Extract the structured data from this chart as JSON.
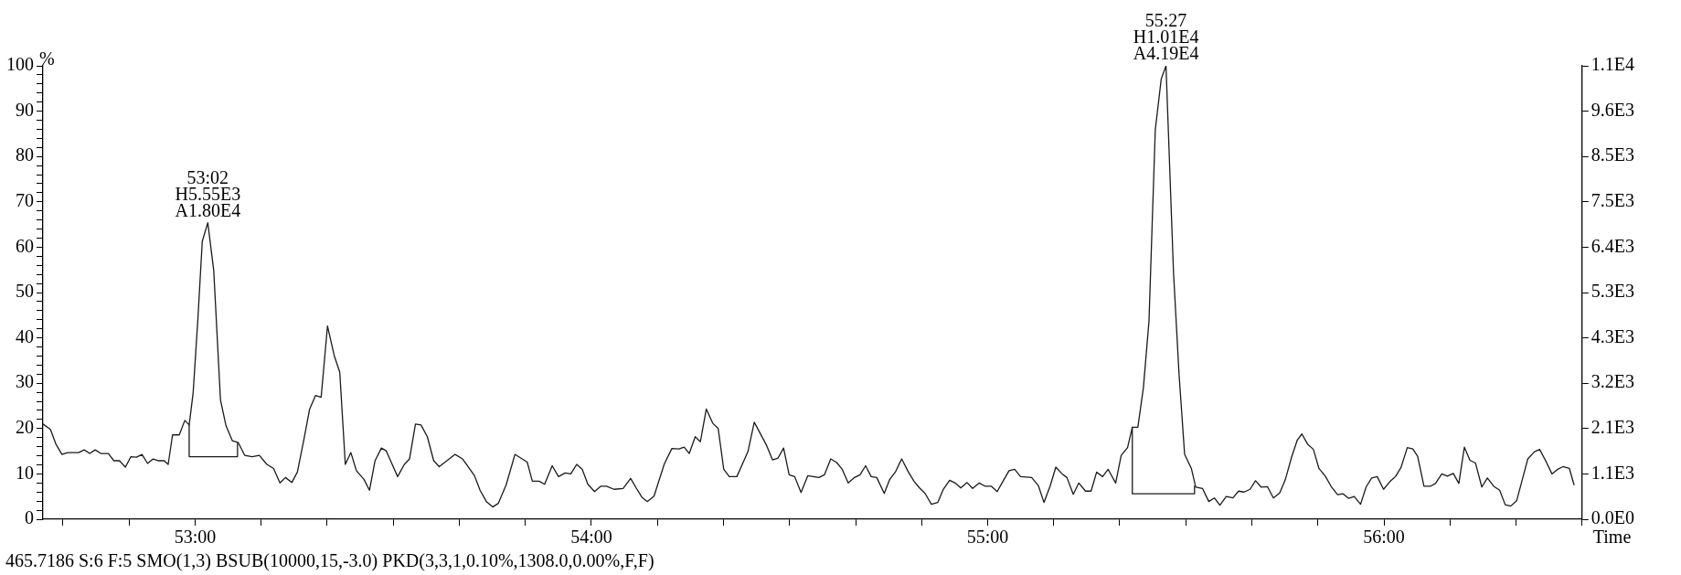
{
  "chart_data": {
    "type": "line",
    "xlabel": "Time",
    "ylabel": "%",
    "xlim": [
      52.616,
      56.5
    ],
    "xticks": [
      {
        "value": 52.6667,
        "label": null
      },
      {
        "value": 52.8333,
        "label": null
      },
      {
        "value": 53,
        "label": "53:00"
      },
      {
        "value": 53.1667,
        "label": null
      },
      {
        "value": 53.3333,
        "label": null
      },
      {
        "value": 53.5,
        "label": null
      },
      {
        "value": 53.6667,
        "label": null
      },
      {
        "value": 53.8333,
        "label": null
      },
      {
        "value": 54,
        "label": "54:00"
      },
      {
        "value": 54.1667,
        "label": null
      },
      {
        "value": 54.3333,
        "label": null
      },
      {
        "value": 54.5,
        "label": null
      },
      {
        "value": 54.6667,
        "label": null
      },
      {
        "value": 54.8333,
        "label": null
      },
      {
        "value": 55,
        "label": "55:00"
      },
      {
        "value": 55.1667,
        "label": null
      },
      {
        "value": 55.3333,
        "label": null
      },
      {
        "value": 55.5,
        "label": null
      },
      {
        "value": 55.6667,
        "label": null
      },
      {
        "value": 55.8333,
        "label": null
      },
      {
        "value": 56,
        "label": "56:00"
      },
      {
        "value": 56.1667,
        "label": null
      },
      {
        "value": 56.3333,
        "label": null
      },
      {
        "value": 56.5,
        "label": null
      }
    ],
    "ylim": [
      0,
      100
    ],
    "yticks": [
      0,
      {
        "value": 2,
        "label": null
      },
      {
        "value": 4,
        "label": null
      },
      {
        "value": 6,
        "label": null
      },
      {
        "value": 8,
        "label": null
      },
      10,
      {
        "value": 12,
        "label": null
      },
      {
        "value": 14,
        "label": null
      },
      {
        "value": 16,
        "label": null
      },
      {
        "value": 18,
        "label": null
      },
      20,
      {
        "value": 22,
        "label": null
      },
      {
        "value": 24,
        "label": null
      },
      {
        "value": 26,
        "label": null
      },
      {
        "value": 28,
        "label": null
      },
      30,
      {
        "value": 32,
        "label": null
      },
      {
        "value": 34,
        "label": null
      },
      {
        "value": 36,
        "label": null
      },
      {
        "value": 38,
        "label": null
      },
      40,
      {
        "value": 42,
        "label": null
      },
      {
        "value": 44,
        "label": null
      },
      {
        "value": 46,
        "label": null
      },
      {
        "value": 48,
        "label": null
      },
      50,
      {
        "value": 52,
        "label": null
      },
      {
        "value": 54,
        "label": null
      },
      {
        "value": 56,
        "label": null
      },
      {
        "value": 58,
        "label": null
      },
      60,
      {
        "value": 62,
        "label": null
      },
      {
        "value": 64,
        "label": null
      },
      {
        "value": 66,
        "label": null
      },
      {
        "value": 68,
        "label": null
      },
      70,
      {
        "value": 72,
        "label": null
      },
      {
        "value": 74,
        "label": null
      },
      {
        "value": 76,
        "label": null
      },
      {
        "value": 78,
        "label": null
      },
      80,
      {
        "value": 82,
        "label": null
      },
      {
        "value": 84,
        "label": null
      },
      {
        "value": 86,
        "label": null
      },
      {
        "value": 88,
        "label": null
      },
      90,
      {
        "value": 92,
        "label": null
      },
      {
        "value": 94,
        "label": null
      },
      {
        "value": 96,
        "label": null
      },
      {
        "value": 98,
        "label": null
      },
      100
    ],
    "y2lim": [
      0,
      10650
    ],
    "y2ticks": [
      {
        "value": 0,
        "label": "0.0E0"
      },
      {
        "value": 1065,
        "label": "1.1E3"
      },
      {
        "value": 2130,
        "label": "2.1E3"
      },
      {
        "value": 3195,
        "label": "3.2E3"
      },
      {
        "value": 4260,
        "label": "4.3E3"
      },
      {
        "value": 5325,
        "label": "5.3E3"
      },
      {
        "value": 6390,
        "label": "6.4E3"
      },
      {
        "value": 7455,
        "label": "7.5E3"
      },
      {
        "value": 8520,
        "label": "8.5E3"
      },
      {
        "value": 9585,
        "label": "9.6E3"
      },
      {
        "value": 10650,
        "label": "1.1E4"
      }
    ],
    "series": [
      {
        "color": "#1a1a1a",
        "x": [
          52.616,
          52.635,
          52.649,
          52.664,
          52.678,
          52.706,
          52.72,
          52.734,
          52.748,
          52.762,
          52.781,
          52.795,
          52.809,
          52.824,
          52.838,
          52.852,
          52.866,
          52.88,
          52.894,
          52.908,
          52.922,
          52.932,
          52.943,
          52.96,
          52.974,
          52.985,
          52.995,
          53.007,
          53.018,
          53.032,
          53.047,
          53.064,
          53.078,
          53.094,
          53.109,
          53.125,
          53.144,
          53.162,
          53.181,
          53.198,
          53.214,
          53.228,
          53.244,
          53.258,
          53.275,
          53.289,
          53.304,
          53.318,
          53.334,
          53.351,
          53.365,
          53.379,
          53.393,
          53.407,
          53.426,
          53.44,
          53.454,
          53.47,
          53.482,
          53.511,
          53.528,
          53.541,
          53.556,
          53.57,
          53.586,
          53.602,
          53.616,
          53.656,
          53.675,
          53.705,
          53.719,
          53.735,
          53.751,
          53.765,
          53.785,
          53.807,
          53.838,
          53.851,
          53.868,
          53.882,
          53.901,
          53.917,
          53.934,
          53.948,
          53.963,
          53.977,
          53.991,
          54.008,
          54.024,
          54.038,
          54.057,
          54.08,
          54.099,
          54.113,
          54.127,
          54.141,
          54.158,
          54.184,
          54.203,
          54.221,
          54.234,
          54.247,
          54.262,
          54.275,
          54.29,
          54.306,
          54.32,
          54.334,
          54.348,
          54.367,
          54.395,
          54.411,
          54.442,
          54.457,
          54.471,
          54.485,
          54.499,
          54.513,
          54.529,
          54.546,
          54.574,
          54.588,
          54.604,
          54.619,
          54.633,
          54.648,
          54.664,
          54.678,
          54.692,
          54.706,
          54.72,
          54.739,
          54.753,
          54.767,
          54.783,
          54.8,
          54.814,
          54.828,
          54.842,
          54.858,
          54.874,
          54.888,
          54.904,
          54.918,
          54.932,
          54.948,
          54.962,
          54.979,
          54.993,
          55.009,
          55.024,
          55.04,
          55.054,
          55.068,
          55.083,
          55.111,
          55.128,
          55.142,
          55.158,
          55.172,
          55.188,
          55.2,
          55.216,
          55.23,
          55.247,
          55.261,
          55.275,
          55.29,
          55.304,
          55.323,
          55.337,
          55.353,
          55.365,
          55.379,
          55.393,
          55.407,
          55.423,
          55.438,
          55.45,
          55.469,
          55.483,
          55.497,
          55.514,
          55.525,
          55.542,
          55.558,
          55.572,
          55.586,
          55.602,
          55.619,
          55.633,
          55.647,
          55.662,
          55.676,
          55.69,
          55.706,
          55.721,
          55.737,
          55.751,
          55.767,
          55.781,
          55.793,
          55.807,
          55.822,
          55.836,
          55.852,
          55.867,
          55.883,
          55.897,
          55.911,
          55.925,
          55.941,
          55.955,
          55.969,
          55.983,
          55.999,
          56.015,
          56.029,
          56.043,
          56.059,
          56.073,
          56.085,
          56.101,
          56.118,
          56.13,
          56.146,
          56.16,
          56.175,
          56.189,
          56.203,
          56.217,
          56.231,
          56.247,
          56.261,
          56.278,
          56.292,
          56.306,
          56.32,
          56.335,
          56.349,
          56.363,
          56.38,
          56.393,
          56.408,
          56.424,
          56.438,
          56.452,
          56.468,
          56.48
        ],
        "values": [
          21.0,
          19.8,
          16.5,
          14.3,
          14.7,
          14.7,
          15.3,
          14.5,
          15.3,
          14.5,
          14.5,
          12.9,
          12.9,
          11.5,
          13.8,
          13.7,
          14.3,
          12.3,
          13.3,
          12.9,
          12.9,
          12.1,
          18.6,
          18.6,
          21.8,
          20.8,
          27.9,
          44.2,
          61.3,
          65.4,
          54.8,
          26.3,
          20.6,
          17.3,
          16.9,
          14.1,
          13.8,
          14.1,
          12.1,
          11.2,
          8.0,
          9.2,
          8.1,
          10.4,
          17.8,
          24.3,
          27.3,
          26.9,
          42.6,
          36.1,
          32.4,
          12.1,
          14.7,
          10.7,
          8.8,
          6.4,
          12.9,
          15.7,
          15.1,
          9.4,
          12.1,
          13.3,
          21.0,
          20.8,
          18.2,
          12.9,
          11.6,
          14.3,
          13.3,
          9.6,
          6.4,
          3.9,
          2.7,
          3.5,
          7.6,
          14.3,
          12.6,
          8.4,
          8.4,
          7.7,
          11.8,
          9.4,
          10.2,
          10.0,
          12.1,
          11.0,
          7.7,
          6.1,
          7.3,
          7.3,
          6.6,
          6.8,
          9.0,
          6.9,
          4.9,
          3.9,
          5.1,
          12.2,
          15.6,
          15.5,
          15.9,
          14.5,
          18.2,
          17.1,
          24.3,
          21.2,
          20.0,
          11.0,
          9.4,
          9.4,
          14.9,
          21.4,
          16.3,
          13.1,
          13.5,
          15.7,
          9.8,
          9.4,
          5.9,
          9.6,
          9.2,
          9.8,
          13.3,
          12.5,
          11.0,
          8.0,
          9.2,
          9.8,
          11.8,
          9.4,
          9.2,
          5.7,
          8.8,
          10.4,
          13.3,
          10.4,
          8.4,
          6.9,
          5.7,
          3.3,
          3.7,
          6.6,
          8.6,
          8.0,
          6.9,
          8.1,
          6.8,
          8.0,
          7.3,
          7.3,
          6.1,
          8.6,
          10.7,
          11.0,
          9.4,
          9.2,
          7.4,
          3.7,
          7.4,
          11.5,
          10.0,
          9.2,
          5.5,
          8.0,
          6.2,
          6.2,
          10.4,
          9.4,
          11.0,
          8.0,
          14.1,
          15.8,
          20.3,
          20.3,
          29.0,
          43.6,
          85.9,
          97.1,
          100,
          54.4,
          31.9,
          14.3,
          11.2,
          7.1,
          6.8,
          3.9,
          4.7,
          3.1,
          5.0,
          4.7,
          6.2,
          6.0,
          6.6,
          8.5,
          7.1,
          7.2,
          4.7,
          5.8,
          8.7,
          13.7,
          17.4,
          18.8,
          16.6,
          15.4,
          11.2,
          9.5,
          7.2,
          5.4,
          5.6,
          4.6,
          5.0,
          3.3,
          7.1,
          9.1,
          9.4,
          6.6,
          8.3,
          9.4,
          11.4,
          15.8,
          15.5,
          13.9,
          7.3,
          7.3,
          7.9,
          10.0,
          9.5,
          10.1,
          7.9,
          15.9,
          13.0,
          12.4,
          7.1,
          9.1,
          7.2,
          6.4,
          3.2,
          2.9,
          4.1,
          8.7,
          13.3,
          14.9,
          15.4,
          12.9,
          10.0,
          11.0,
          11.6,
          11.2,
          7.5
        ]
      },
      {
        "color": "#1a1a1a",
        "x": [
          52.985,
          52.985,
          53.107,
          53.107
        ],
        "values": [
          20.8,
          13.8,
          13.8,
          16.9
        ]
      },
      {
        "color": "#1a1a1a",
        "x": [
          55.365,
          55.365,
          55.522,
          55.522
        ],
        "values": [
          20.3,
          5.6,
          5.6,
          7.4
        ]
      }
    ],
    "annotations": [
      {
        "text": "53:02\nH5.55E3\nA1.80E4",
        "x": 53.032,
        "y": 65.4
      },
      {
        "text": "55:27\nH1.01E4\nA4.19E4",
        "x": 55.45,
        "y": 100
      },
      "465.7186 S:6 F:5 SMO(1,3) BSUB(10000,15,-3.0) PKD(3,3,1,0.10%,1308.0,0.00%,F,F)"
    ]
  }
}
